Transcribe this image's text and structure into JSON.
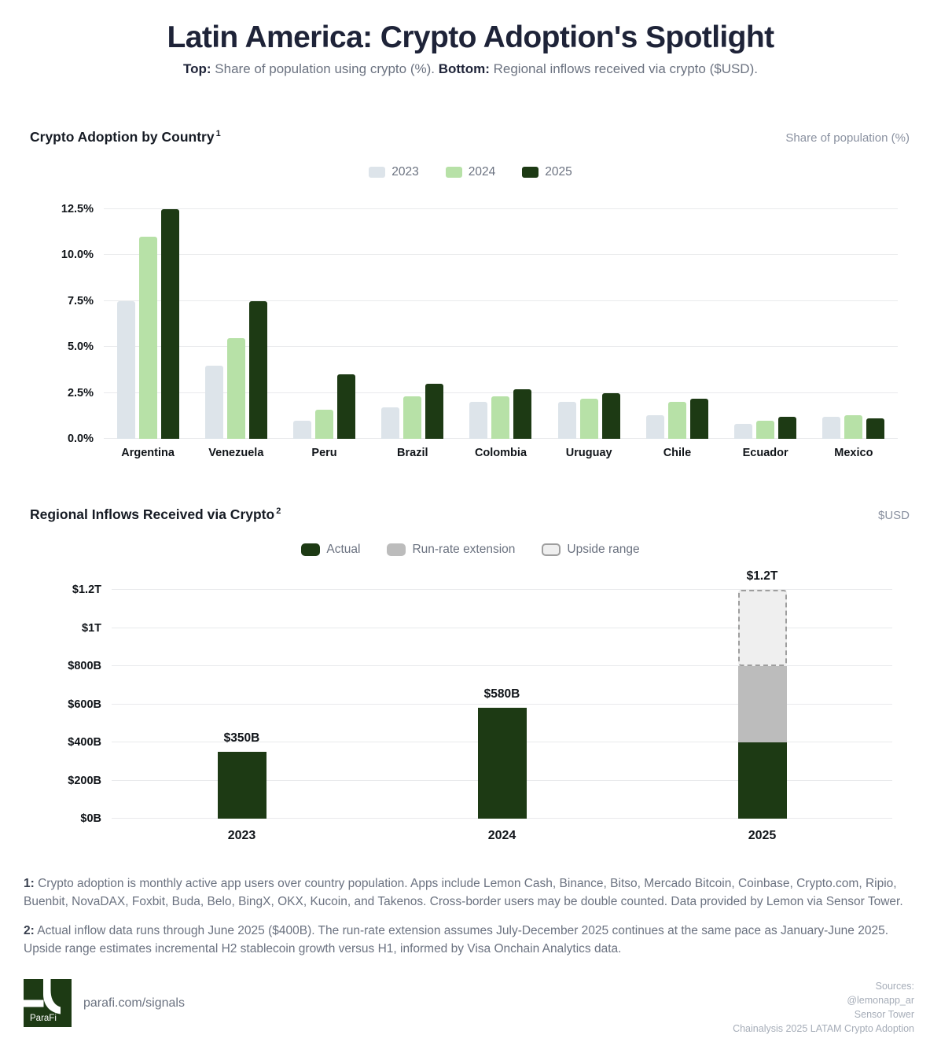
{
  "header": {
    "title": "Latin America: Crypto Adoption's Spotlight",
    "subtitle": [
      {
        "text": "Top:",
        "bold": true
      },
      {
        "text": " Share of population using crypto (%). ",
        "bold": false
      },
      {
        "text": "Bottom:",
        "bold": true
      },
      {
        "text": " Regional inflows received via crypto ($USD).",
        "bold": false
      }
    ]
  },
  "colors": {
    "title_navy": "#1e2338",
    "muted_gray": "#6b7280",
    "bar_2023": "#dde4ea",
    "bar_2024": "#b7e1a7",
    "bar_2025": "#1d3a14",
    "actual_green": "#1d3a14",
    "runrate_gray": "#bcbcbc",
    "upside_fill": "#efefef",
    "upside_border": "#9e9e9e",
    "gridline": "#e9eaec"
  },
  "chart_data": [
    {
      "type": "bar",
      "title": "Crypto Adoption by Country",
      "footnote_marker": "1",
      "unit_label": "Share of population (%)",
      "legend_position": "top",
      "grid": true,
      "ylim": [
        0,
        12.5
      ],
      "yticks": [
        {
          "value": 0,
          "label": "0.0%"
        },
        {
          "value": 2.5,
          "label": "2.5%"
        },
        {
          "value": 5,
          "label": "5.0%"
        },
        {
          "value": 7.5,
          "label": "7.5%"
        },
        {
          "value": 10,
          "label": "10.0%"
        },
        {
          "value": 12.5,
          "label": "12.5%"
        }
      ],
      "categories": [
        "Argentina",
        "Venezuela",
        "Peru",
        "Brazil",
        "Colombia",
        "Uruguay",
        "Chile",
        "Ecuador",
        "Mexico"
      ],
      "series": [
        {
          "name": "2023",
          "color": "#dde4ea",
          "values": [
            7.5,
            4.0,
            1.0,
            1.7,
            2.0,
            2.0,
            1.3,
            0.8,
            1.2
          ]
        },
        {
          "name": "2024",
          "color": "#b7e1a7",
          "values": [
            11.0,
            5.5,
            1.6,
            2.3,
            2.3,
            2.2,
            2.0,
            1.0,
            1.3
          ]
        },
        {
          "name": "2025",
          "color": "#1d3a14",
          "values": [
            12.5,
            7.5,
            3.5,
            3.0,
            2.7,
            2.5,
            2.2,
            1.2,
            1.1
          ]
        }
      ]
    },
    {
      "type": "bar",
      "subtype": "stacked",
      "title": "Regional Inflows Received via Crypto",
      "footnote_marker": "2",
      "unit_label": "$USD",
      "legend_position": "top",
      "grid": true,
      "ylim": [
        0,
        1200
      ],
      "yticks": [
        {
          "value": 0,
          "label": "$0B"
        },
        {
          "value": 200,
          "label": "$200B"
        },
        {
          "value": 400,
          "label": "$400B"
        },
        {
          "value": 600,
          "label": "$600B"
        },
        {
          "value": 800,
          "label": "$800B"
        },
        {
          "value": 1000,
          "label": "$1T"
        },
        {
          "value": 1200,
          "label": "$1.2T"
        }
      ],
      "categories": [
        "2023",
        "2024",
        "2025"
      ],
      "series": [
        {
          "name": "Actual",
          "color": "#1d3a14",
          "values": [
            350,
            580,
            400
          ]
        },
        {
          "name": "Run-rate extension",
          "color": "#bcbcbc",
          "values": [
            0,
            0,
            400
          ]
        },
        {
          "name": "Upside range",
          "color": "#efefef",
          "border": "#9e9e9e",
          "border_style": "dashed",
          "values": [
            0,
            0,
            400
          ]
        }
      ],
      "bar_labels": [
        "$350B",
        "$580B",
        "$1.2T"
      ]
    }
  ],
  "footnotes": [
    {
      "marker": "1:",
      "text": " Crypto adoption is monthly active app users over country population. Apps include Lemon Cash, Binance, Bitso, Mercado Bitcoin, Coinbase, Crypto.com, Ripio, Buenbit, NovaDAX, Foxbit, Buda, Belo, BingX, OKX, Kucoin, and Takenos. Cross-border users may be double counted. Data provided by Lemon via Sensor Tower."
    },
    {
      "marker": "2:",
      "text": " Actual inflow data runs through June 2025 ($400B). The run-rate extension assumes July-December 2025 continues at the same pace as January-June 2025. Upside range estimates incremental H2 stablecoin growth versus H1, informed by Visa Onchain Analytics data."
    }
  ],
  "footer": {
    "logo_text": "ParaFi",
    "link": "parafi.com/signals",
    "sources_title": "Sources:",
    "sources": [
      "@lemonapp_ar",
      "Sensor Tower",
      "Chainalysis 2025 LATAM Crypto Adoption"
    ]
  }
}
